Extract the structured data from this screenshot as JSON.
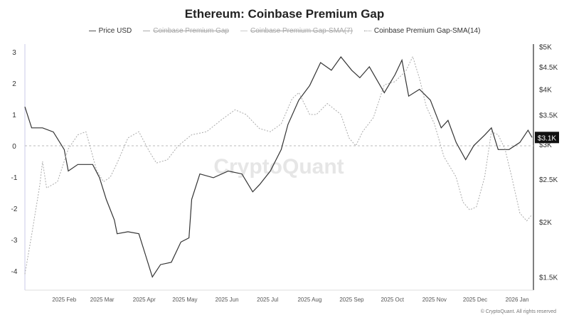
{
  "chart_data": {
    "type": "line",
    "title": "Ethereum: Coinbase Premium Gap",
    "legend": [
      {
        "label": "Price USD",
        "active": true
      },
      {
        "label": "Coinbase Premium Gap",
        "active": false
      },
      {
        "label": "Coinbase Premium Gap-SMA(7)",
        "active": false
      },
      {
        "label": "Coinbase Premium Gap-SMA(14)",
        "active": true
      }
    ],
    "x_unit": "days since 2025-01-01",
    "xlim": [
      2,
      377
    ],
    "x_ticks": [
      {
        "day": 31,
        "label": "2025 Feb"
      },
      {
        "day": 59,
        "label": "2025 Mar"
      },
      {
        "day": 90,
        "label": "2025 Apr"
      },
      {
        "day": 120,
        "label": "2025 May"
      },
      {
        "day": 151,
        "label": "2025 Jun"
      },
      {
        "day": 181,
        "label": "2025 Jul"
      },
      {
        "day": 212,
        "label": "2025 Aug"
      },
      {
        "day": 243,
        "label": "2025 Sep"
      },
      {
        "day": 273,
        "label": "2025 Oct"
      },
      {
        "day": 304,
        "label": "2025 Nov"
      },
      {
        "day": 334,
        "label": "2025 Dec"
      },
      {
        "day": 365,
        "label": "2026 Jan"
      }
    ],
    "left_axis": {
      "ylim": [
        -4.5,
        3.3
      ],
      "ticks": [
        3,
        2,
        1,
        0,
        -1,
        -2,
        -3,
        -4
      ],
      "tick_labels": [
        "3",
        "2",
        "1",
        "0",
        "-1",
        "-2",
        "-3",
        "-4"
      ]
    },
    "right_axis": {
      "scale": "log",
      "ylim": [
        1350,
        5100
      ],
      "ticks": [
        5000,
        4500,
        4000,
        3500,
        3000,
        2500,
        2000,
        1500
      ],
      "tick_labels": [
        "$5K",
        "$4.5K",
        "$4K",
        "$3.5K",
        "$3K",
        "$2.5K",
        "$2K",
        "$1.5K"
      ],
      "current_label": "$3.1K",
      "current_value": 3110
    },
    "series": [
      {
        "name": "Price USD",
        "axis": "right",
        "color": "#333333",
        "x": [
          2,
          7,
          15,
          23,
          31,
          34,
          41,
          52,
          57,
          62,
          68,
          70,
          78,
          86,
          91,
          96,
          102,
          110,
          117,
          123,
          125,
          131,
          141,
          152,
          162,
          170,
          175,
          183,
          191,
          196,
          204,
          212,
          220,
          228,
          235,
          243,
          249,
          256,
          267,
          275,
          280,
          285,
          293,
          301,
          309,
          314,
          320,
          327,
          333,
          341,
          346,
          351,
          359,
          367,
          373,
          376
        ],
        "y": [
          3650,
          3270,
          3270,
          3200,
          2920,
          2610,
          2700,
          2700,
          2520,
          2250,
          2020,
          1880,
          1900,
          1880,
          1680,
          1500,
          1600,
          1620,
          1800,
          1840,
          2250,
          2570,
          2520,
          2610,
          2570,
          2340,
          2430,
          2610,
          2920,
          3330,
          3780,
          4080,
          4600,
          4420,
          4740,
          4420,
          4250,
          4500,
          3930,
          4320,
          4660,
          3860,
          4000,
          3780,
          3270,
          3400,
          3030,
          2770,
          2980,
          3150,
          3270,
          2920,
          2920,
          3030,
          3230,
          3110
        ]
      },
      {
        "name": "Coinbase Premium Gap-SMA(14)",
        "axis": "left",
        "color": "#aaaaaa",
        "x": [
          2,
          7,
          13,
          15,
          18,
          26,
          34,
          41,
          47,
          55,
          60,
          65,
          70,
          78,
          86,
          94,
          99,
          107,
          115,
          125,
          136,
          146,
          157,
          165,
          175,
          183,
          191,
          199,
          204,
          212,
          217,
          225,
          235,
          241,
          246,
          251,
          259,
          267,
          275,
          283,
          288,
          293,
          298,
          304,
          311,
          320,
          325,
          330,
          335,
          341,
          346,
          351,
          356,
          361,
          367,
          372,
          376
        ],
        "y": [
          -4.1,
          -2.85,
          -1.25,
          -0.5,
          -1.35,
          -1.15,
          -0.1,
          0.35,
          0.45,
          -0.8,
          -1.15,
          -1.0,
          -0.55,
          0.25,
          0.45,
          -0.2,
          -0.55,
          -0.45,
          0,
          0.35,
          0.45,
          0.8,
          1.15,
          1.0,
          0.55,
          0.45,
          0.7,
          1.5,
          1.7,
          1.0,
          1.0,
          1.35,
          1.0,
          0.25,
          0,
          0.45,
          0.9,
          1.95,
          2.05,
          2.4,
          2.85,
          2.15,
          1.25,
          0.7,
          -0.35,
          -1.0,
          -1.8,
          -2.05,
          -1.95,
          -1.0,
          0.45,
          0.35,
          -0.1,
          -1.0,
          -2.15,
          -2.4,
          -2.2
        ]
      }
    ],
    "watermark": "CryptoQuant",
    "copyright": "© CryptoQuant. All rights reserved"
  }
}
